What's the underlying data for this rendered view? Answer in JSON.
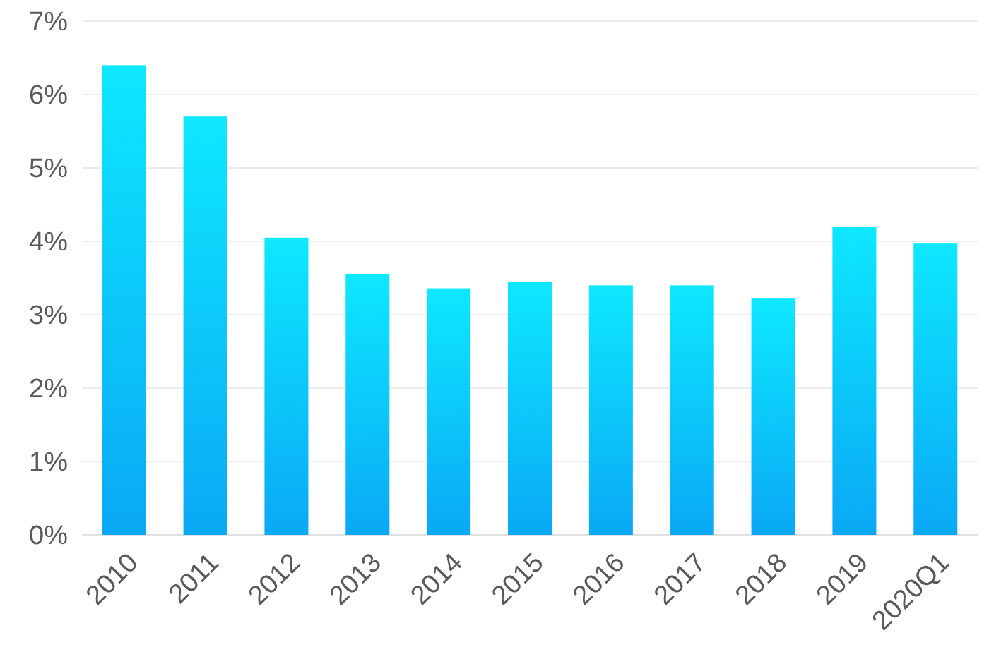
{
  "chart_data": {
    "type": "bar",
    "categories": [
      "2010",
      "2011",
      "2012",
      "2013",
      "2014",
      "2015",
      "2016",
      "2017",
      "2018",
      "2019",
      "2020Q1"
    ],
    "values": [
      6.4,
      5.7,
      4.05,
      3.55,
      3.36,
      3.45,
      3.4,
      3.4,
      3.22,
      4.2,
      3.97
    ],
    "color": "#0aa8f5",
    "ylim": [
      0,
      7
    ],
    "yticks": [
      {
        "value": 0,
        "label": "0%"
      },
      {
        "value": 1,
        "label": "1%"
      },
      {
        "value": 2,
        "label": "2%"
      },
      {
        "value": 3,
        "label": "3%"
      },
      {
        "value": 4,
        "label": "4%"
      },
      {
        "value": 5,
        "label": "5%"
      },
      {
        "value": 6,
        "label": "6%"
      },
      {
        "value": 7,
        "label": "7%"
      }
    ],
    "grid": "y"
  }
}
